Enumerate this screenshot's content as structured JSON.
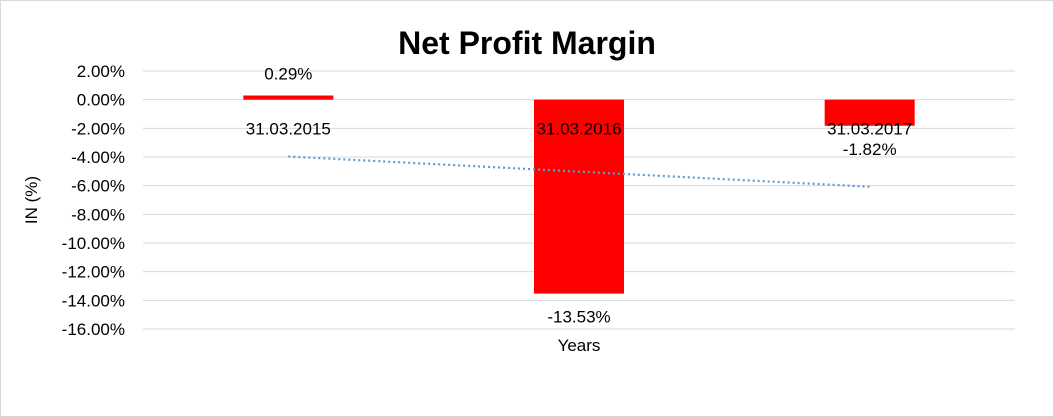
{
  "chart_data": {
    "type": "bar",
    "title": "Net Profit Margin",
    "xlabel": "Years",
    "ylabel": "IN (%)",
    "categories": [
      "31.03.2015",
      "31.03.2016",
      "31.03.2017"
    ],
    "values": [
      0.29,
      -13.53,
      -1.82
    ],
    "data_labels": [
      "0.29%",
      "-13.53%",
      "-1.82%"
    ],
    "ylim": [
      -16,
      2
    ],
    "ytick_step": 2,
    "yticks": [
      "2.00%",
      "0.00%",
      "-2.00%",
      "-4.00%",
      "-6.00%",
      "-8.00%",
      "-10.00%",
      "-12.00%",
      "-14.00%",
      "-16.00%"
    ],
    "grid": true,
    "trendline": "linear",
    "colors": {
      "bar": "#ff0000",
      "trendline": "#5b9bd5",
      "grid": "#d9d9d9"
    }
  }
}
